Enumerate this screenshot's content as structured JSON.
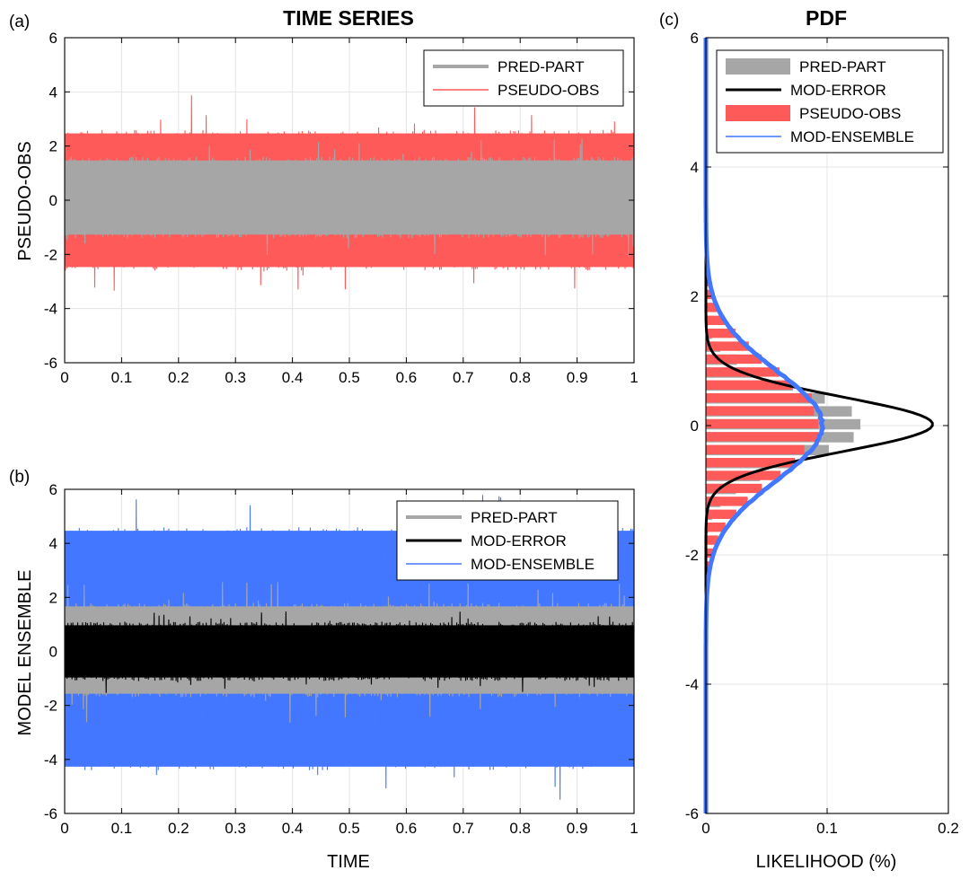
{
  "figure": {
    "title_left": "TIME SERIES",
    "title_right": "PDF",
    "panel_a": "(a)",
    "panel_b": "(b)",
    "panel_c": "(c)"
  },
  "colors": {
    "pred_part": "#a6a6a6",
    "pseudo_obs": "#ff5a5a",
    "mod_error": "#000000",
    "mod_ensemble": "#4477ff"
  },
  "chart_data": [
    {
      "id": "a",
      "type": "line",
      "title": "TIME SERIES",
      "xlabel": "",
      "ylabel": "PSEUDO-OBS",
      "xlim": [
        0,
        1
      ],
      "ylim": [
        -6,
        6
      ],
      "xticks": [
        "0",
        "0.1",
        "0.2",
        "0.3",
        "0.4",
        "0.5",
        "0.6",
        "0.7",
        "0.8",
        "0.9",
        "1"
      ],
      "yticks": [
        "-6",
        "-4",
        "-2",
        "0",
        "2",
        "4",
        "6"
      ],
      "grid": true,
      "legend_position": "top-right",
      "series": [
        {
          "name": "PRED-PART",
          "color": "#a6a6a6",
          "envelope_typical": [
            -1.4,
            1.6
          ],
          "envelope_extreme": [
            -2.1,
            2.3
          ]
        },
        {
          "name": "PSEUDO-OBS",
          "color": "#ff5a5a",
          "envelope_typical": [
            -2.6,
            2.6
          ],
          "envelope_extreme": [
            -4.0,
            3.9
          ]
        }
      ]
    },
    {
      "id": "b",
      "type": "line",
      "xlabel": "TIME",
      "ylabel": "MODEL ENSEMBLE",
      "xlim": [
        0,
        1
      ],
      "ylim": [
        -6,
        6
      ],
      "xticks": [
        "0",
        "0.1",
        "0.2",
        "0.3",
        "0.4",
        "0.5",
        "0.6",
        "0.7",
        "0.8",
        "0.9",
        "1"
      ],
      "yticks": [
        "-6",
        "-4",
        "-2",
        "0",
        "2",
        "4",
        "6"
      ],
      "grid": true,
      "legend_position": "top-right",
      "series": [
        {
          "name": "PRED-PART",
          "color": "#a6a6a6",
          "envelope_typical": [
            -1.7,
            1.8
          ],
          "envelope_extreme": [
            -3.0,
            2.6
          ]
        },
        {
          "name": "MOD-ERROR",
          "color": "#000000",
          "envelope_typical": [
            -1.1,
            1.1
          ],
          "envelope_extreme": [
            -1.6,
            1.5
          ]
        },
        {
          "name": "MOD-ENSEMBLE",
          "color": "#4477ff",
          "envelope_typical": [
            -4.4,
            4.6
          ],
          "envelope_extreme": [
            -5.5,
            5.8
          ]
        }
      ]
    },
    {
      "id": "c",
      "type": "bar",
      "title": "PDF",
      "xlabel": "LIKELIHOOD (%)",
      "ylabel": "",
      "xlim": [
        0,
        0.2
      ],
      "ylim": [
        -6,
        6
      ],
      "xticks": [
        "0",
        "0.1",
        "0.2"
      ],
      "yticks": [
        "-6",
        "-4",
        "-2",
        "0",
        "2",
        "4",
        "6"
      ],
      "grid": true,
      "legend_position": "top",
      "orientation": "horizontal",
      "bin_width": 0.2,
      "series": [
        {
          "name": "PRED-PART",
          "color": "#a6a6a6",
          "kind": "histogram",
          "mean": 0.0,
          "std": 0.55,
          "peak": 0.13
        },
        {
          "name": "MOD-ERROR",
          "color": "#000000",
          "kind": "line",
          "mean": 0.02,
          "std": 0.42,
          "peak": 0.187
        },
        {
          "name": "PSEUDO-OBS",
          "color": "#ff5a5a",
          "kind": "histogram",
          "mean": 0.0,
          "std": 0.85,
          "peak": 0.094
        },
        {
          "name": "MOD-ENSEMBLE",
          "color": "#4477ff",
          "kind": "line",
          "mean": 0.0,
          "std": 0.85,
          "peak": 0.096
        }
      ]
    }
  ]
}
